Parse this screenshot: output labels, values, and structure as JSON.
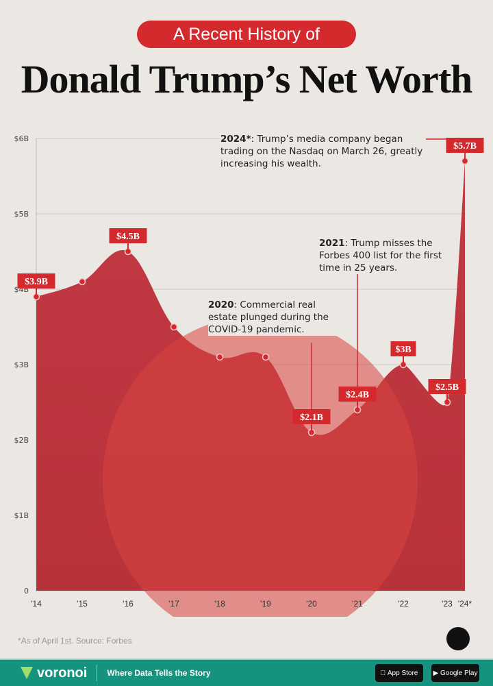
{
  "header": {
    "kicker": "A Recent History of",
    "title": "Donald Trump’s Net Worth"
  },
  "chart_data": {
    "type": "area",
    "title": "Donald Trump’s Net Worth",
    "categories": [
      "'14",
      "'15",
      "'16",
      "'17",
      "'18",
      "'19",
      "'20",
      "'21",
      "'22",
      "'23",
      "'24*"
    ],
    "x": [
      2014,
      2015,
      2016,
      2017,
      2018,
      2019,
      2020,
      2021,
      2022,
      2023,
      2024
    ],
    "values": [
      3.9,
      4.1,
      4.5,
      3.5,
      3.1,
      3.1,
      2.1,
      2.4,
      3.0,
      2.5,
      5.7
    ],
    "unit": "USD billions",
    "data_labels": {
      "0": "$3.9B",
      "2": "$4.5B",
      "6": "$2.1B",
      "7": "$2.4B",
      "8": "$3B",
      "9": "$2.5B",
      "10": "$5.7B"
    },
    "yticks": [
      "0",
      "$1B",
      "$2B",
      "$3B",
      "$4B",
      "$5B",
      "$6B"
    ],
    "ylim": [
      0,
      6
    ],
    "grid": true,
    "colors": {
      "area": "#c9343a",
      "label": "#d42a2e",
      "point": "#d42a2e"
    },
    "annotations": [
      {
        "year_bold": "2024*",
        "text": ": Trump’s media company began trading on the Nasdaq on March 26, greatly increasing his wealth."
      },
      {
        "year_bold": "2021",
        "text": ": Trump misses the Forbes 400 list for the first time in 25 years."
      },
      {
        "year_bold": "2020",
        "text": ": Commercial real estate plunged during the COVID-19 pandemic."
      }
    ]
  },
  "footnote": "*As of April 1st. Source: Forbes",
  "footer": {
    "brand": "voronoi",
    "tagline": "Where Data Tells the Story",
    "app_store": "App Store",
    "google_play": "Google Play"
  }
}
